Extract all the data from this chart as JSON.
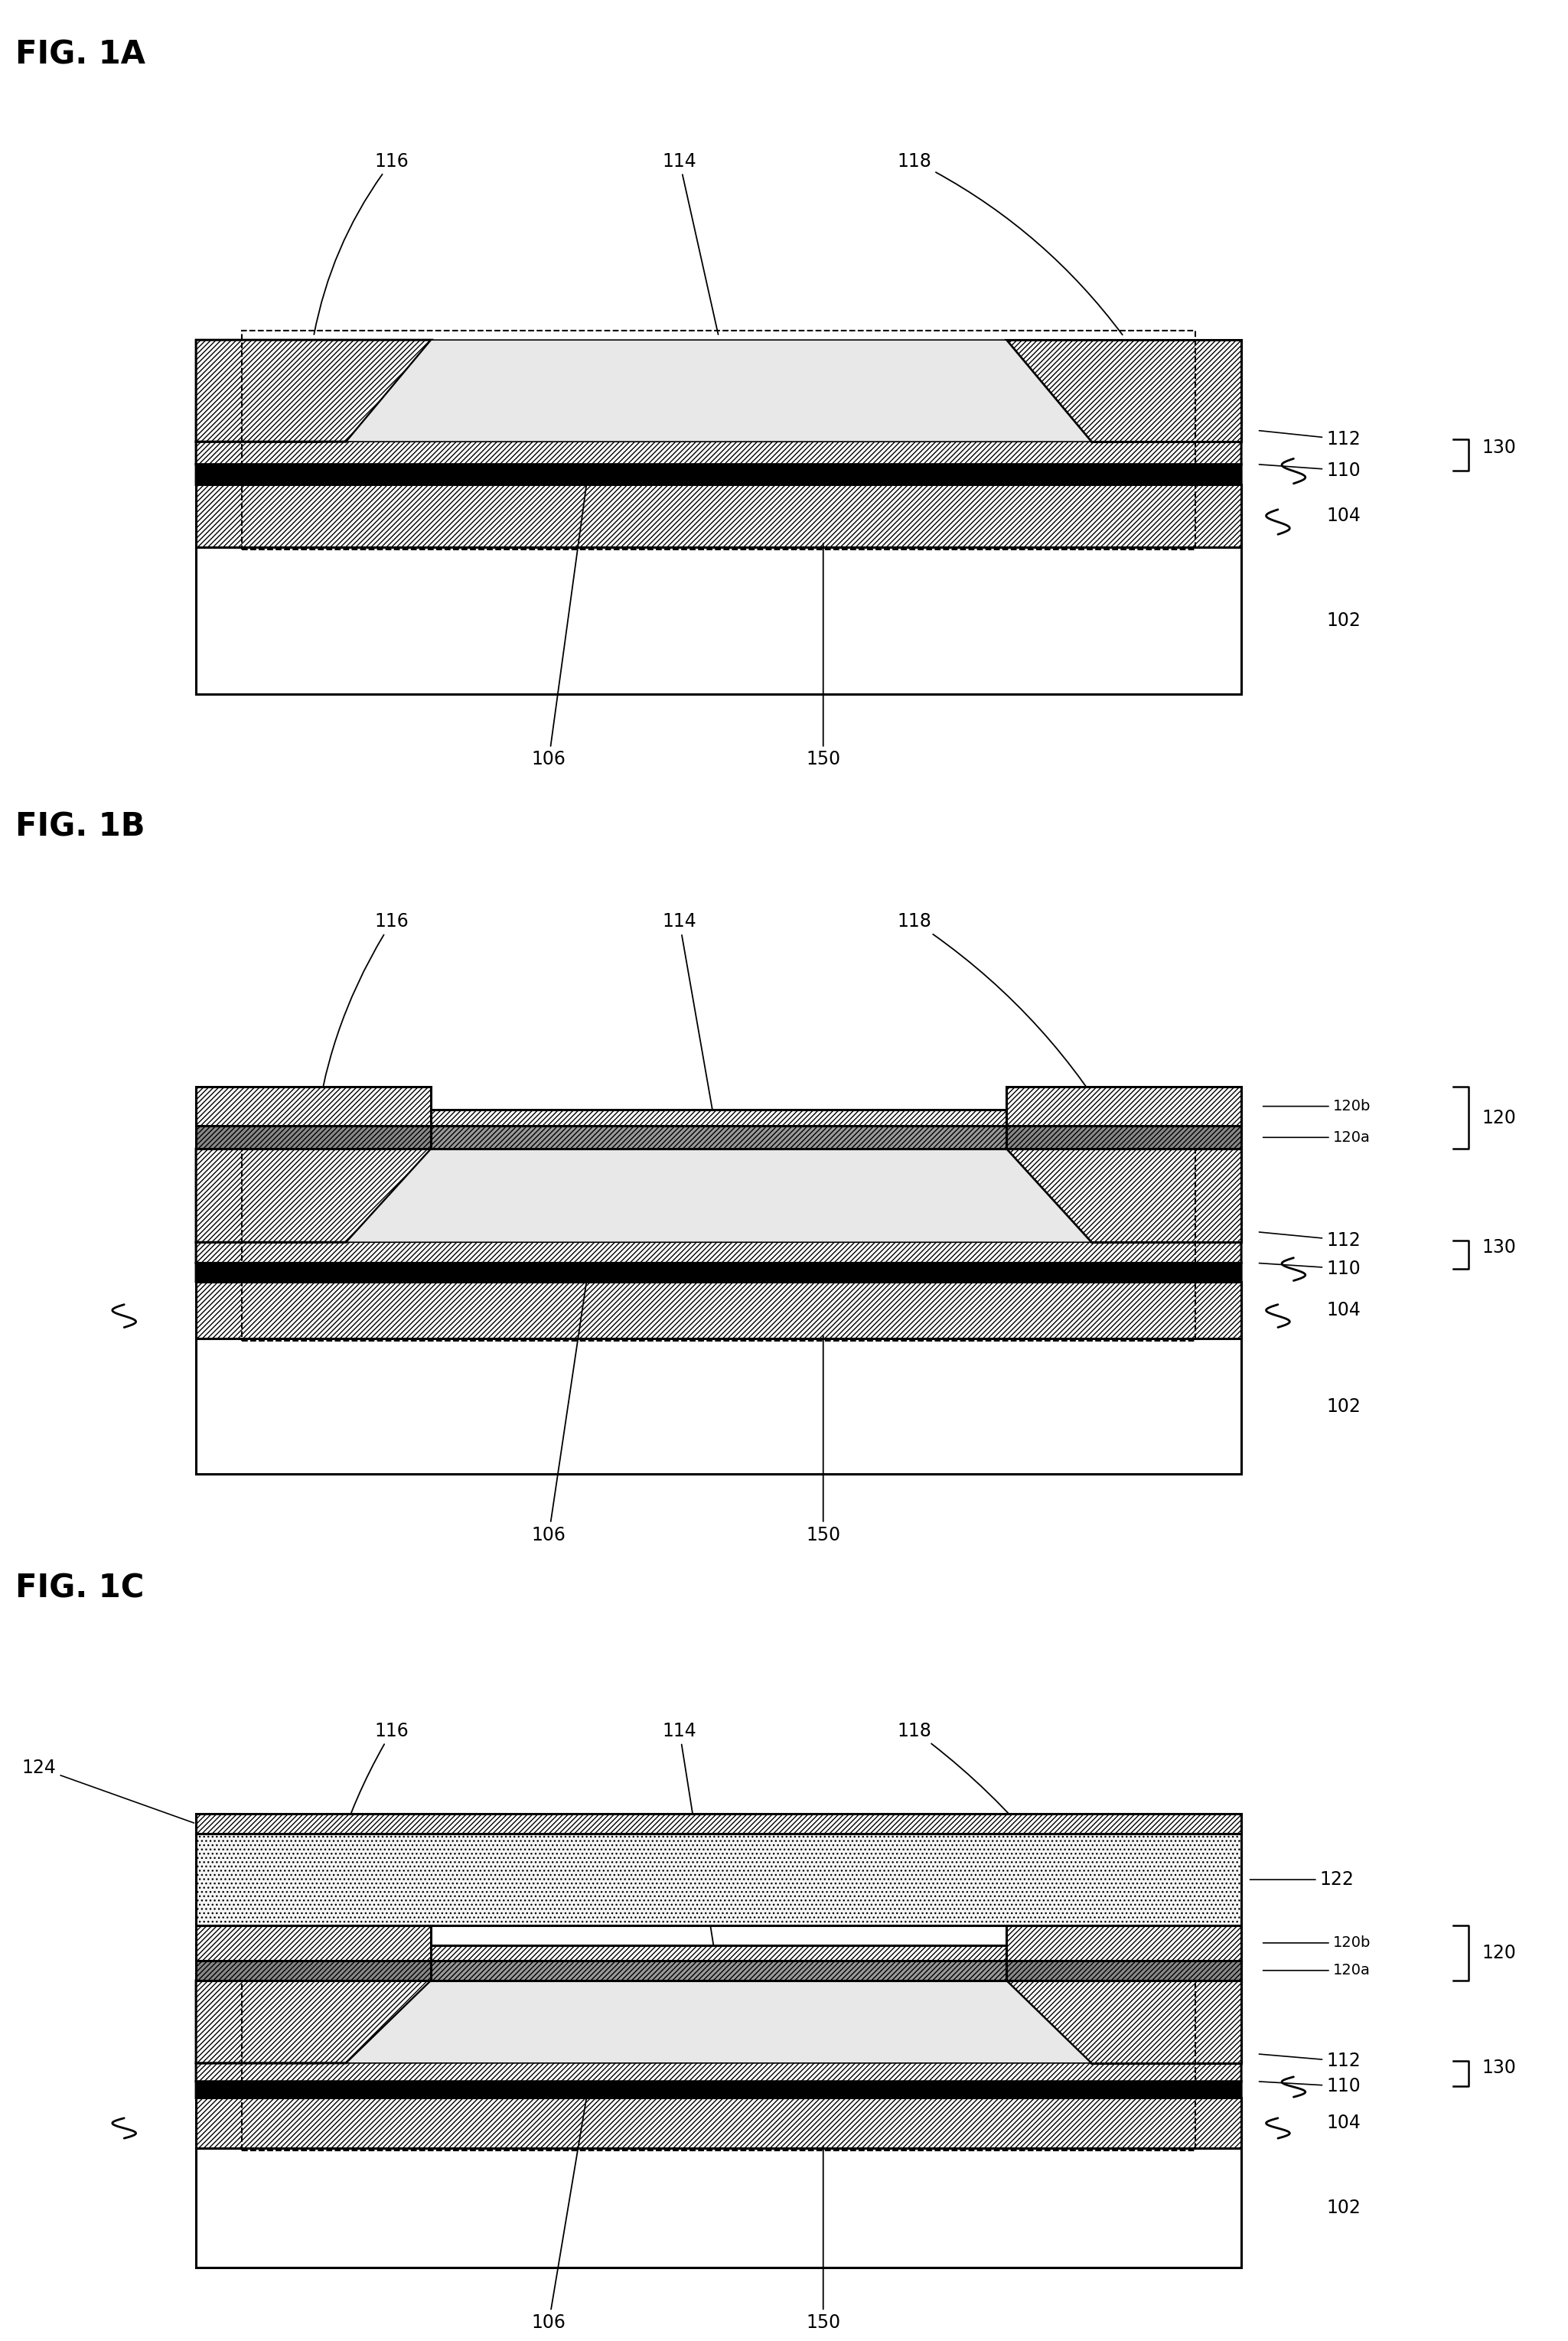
{
  "fig_width": 20.49,
  "fig_height": 30.59,
  "bg": "#ffffff",
  "figures": [
    "FIG. 1A",
    "FIG. 1B",
    "FIG. 1C"
  ],
  "lw": 2.2,
  "fs_label": 22,
  "fs_fig": 30,
  "fs_ann": 17
}
